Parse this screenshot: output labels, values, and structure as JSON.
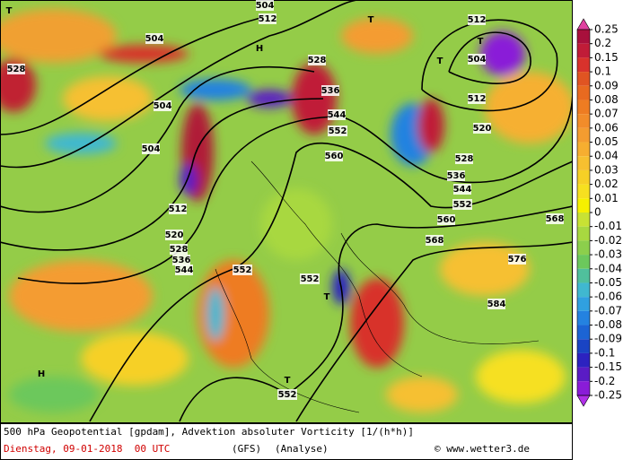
{
  "map": {
    "contour_labels": [
      504,
      512,
      504,
      528,
      528,
      536,
      544,
      552,
      504,
      504,
      512,
      520,
      528,
      536,
      544,
      552,
      552,
      560,
      512,
      504,
      512,
      520,
      528,
      536,
      544,
      552,
      560,
      568,
      568,
      576,
      584,
      552
    ],
    "highlight_level": 552,
    "centers": [
      "T",
      "H",
      "T",
      "T",
      "T",
      "T",
      "T",
      "H"
    ]
  },
  "colorbar": {
    "levels": [
      0.25,
      0.2,
      0.15,
      0.1,
      0.09,
      0.08,
      0.07,
      0.06,
      0.05,
      0.04,
      0.03,
      0.02,
      0.01,
      0,
      -0.01,
      -0.02,
      -0.03,
      -0.04,
      -0.05,
      -0.06,
      -0.07,
      -0.08,
      -0.09,
      -0.1,
      -0.15,
      -0.2,
      -0.25
    ],
    "colors": [
      "#a8103c",
      "#c01c38",
      "#d8322c",
      "#e05422",
      "#e86a20",
      "#ee7c22",
      "#f28c2a",
      "#f49c30",
      "#f6ae30",
      "#f6c030",
      "#f6d026",
      "#f6e020",
      "#f6f000",
      "#c8e234",
      "#a8d840",
      "#8ccf4c",
      "#6cc85c",
      "#50c09c",
      "#40b8d0",
      "#30a0e0",
      "#2482e0",
      "#1c64d4",
      "#1a44c4",
      "#2c22c0",
      "#5a1cc4",
      "#8a1cd8"
    ],
    "above_color": "#e040a0",
    "below_color": "#b030e8"
  },
  "footer": {
    "caption": "500 hPa Geopotential [gpdam], Advektion absoluter Vorticity [1/(h*h)]",
    "date": "Dienstag, 09-01-2018  00 UTC",
    "model": "(GFS)",
    "run": "(Analyse)",
    "credit": "© www.wetter3.de"
  }
}
